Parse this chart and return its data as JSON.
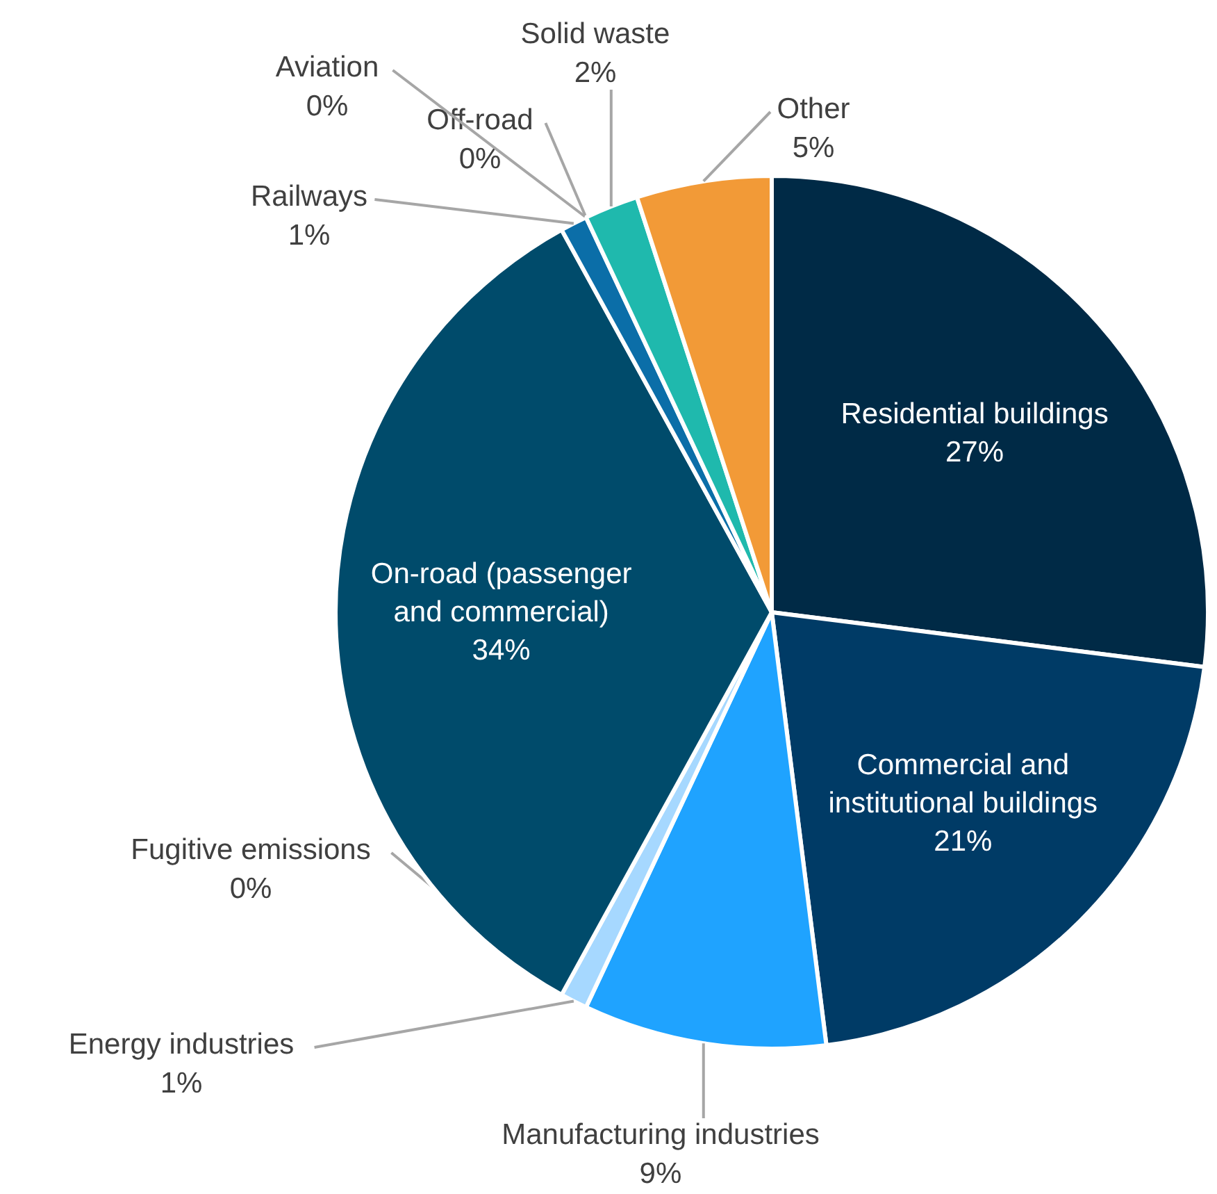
{
  "chart_data": {
    "type": "pie",
    "categories": [
      "Residential buildings",
      "Commercial and institutional buildings",
      "Manufacturing industries",
      "Energy industries",
      "Fugitive emissions",
      "On-road (passenger and commercial)",
      "Railways",
      "Off-road",
      "Aviation",
      "Solid waste",
      "Other"
    ],
    "values": [
      27,
      21,
      9,
      1,
      0,
      34,
      1,
      0,
      0,
      2,
      5
    ],
    "value_labels": [
      "27%",
      "21%",
      "9%",
      "1%",
      "0%",
      "34%",
      "1%",
      "0%",
      "0%",
      "2%",
      "5%"
    ],
    "colors": [
      "#002a46",
      "#003b66",
      "#1fa3ff",
      "#a6d8ff",
      "#7fc4f0",
      "#004b6b",
      "#0b6ea8",
      "#4d8fb8",
      "#8ab8d8",
      "#1fb9ad",
      "#f29a37"
    ]
  }
}
